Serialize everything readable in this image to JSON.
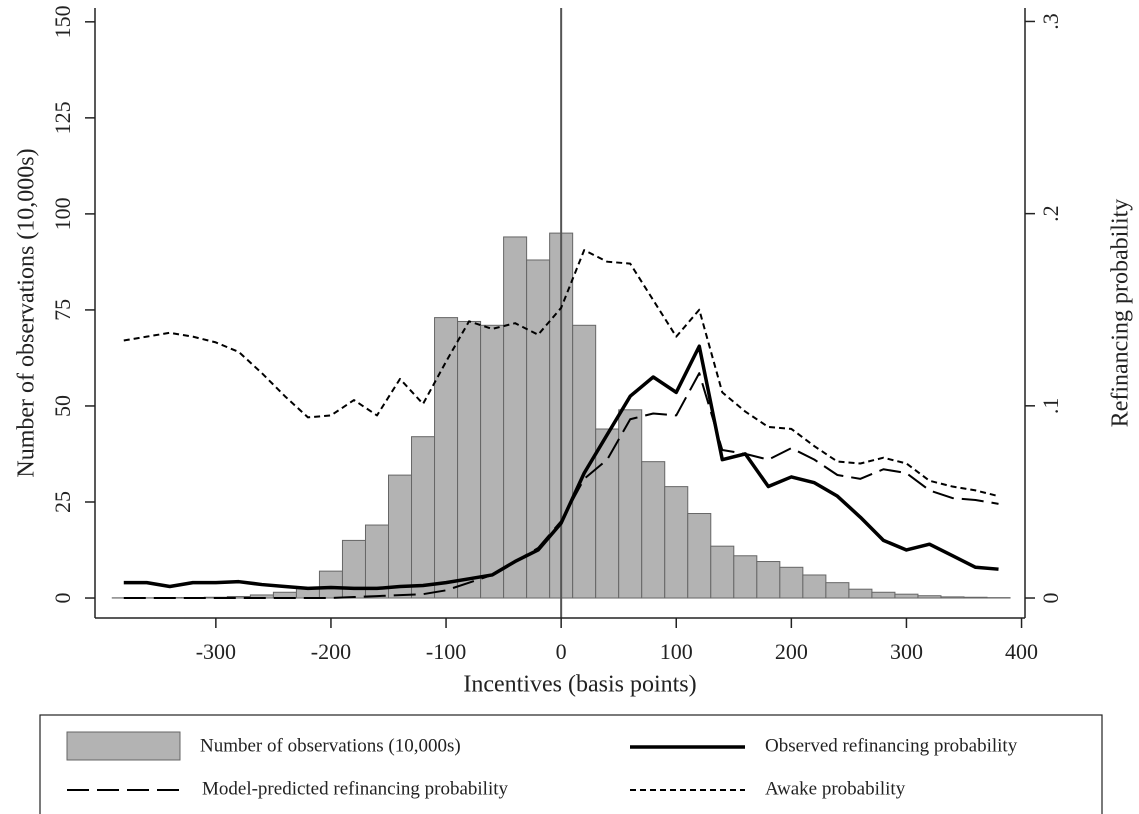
{
  "chart_data": [
    {
      "type": "histogram",
      "name": "Number of observations (10,000s)",
      "color": "#b3b3b3",
      "bins": [
        -390,
        -370,
        -350,
        -330,
        -310,
        -290,
        -270,
        -250,
        -230,
        -210,
        -190,
        -170,
        -150,
        -130,
        -110,
        -90,
        -70,
        -50,
        -30,
        -10,
        10,
        30,
        50,
        70,
        90,
        110,
        130,
        150,
        170,
        190,
        210,
        230,
        250,
        270,
        290,
        310,
        330,
        350,
        370,
        390
      ],
      "values": [
        0.05,
        0.05,
        0.1,
        0.1,
        0.2,
        0.4,
        0.8,
        1.5,
        2.5,
        7,
        15,
        19,
        32,
        42,
        73,
        72,
        71,
        94,
        88,
        95,
        71,
        44,
        49,
        35.5,
        29,
        22,
        13.5,
        11,
        9.5,
        8,
        6,
        4,
        2.3,
        1.5,
        1,
        0.6,
        0.3,
        0.2,
        0.1
      ],
      "xlim": [
        -405,
        403
      ],
      "xticks": [
        -300,
        -200,
        -100,
        0,
        100,
        200,
        300,
        400
      ],
      "xlabel": "Incentives (basis points)",
      "ylim": [
        -5.2,
        153.6
      ],
      "yticks": [
        0,
        25,
        50,
        75,
        100,
        125,
        150
      ],
      "ylabel": "Number of observations (10,000s)",
      "vline": 0
    },
    {
      "type": "line",
      "x": [
        -380,
        -360,
        -340,
        -320,
        -300,
        -280,
        -260,
        -240,
        -220,
        -200,
        -180,
        -160,
        -140,
        -120,
        -100,
        -80,
        -60,
        -40,
        -20,
        0,
        20,
        40,
        60,
        80,
        100,
        120,
        140,
        160,
        180,
        200,
        220,
        240,
        260,
        280,
        300,
        320,
        340,
        360,
        380
      ],
      "y2lim": [
        -0.0104,
        0.307
      ],
      "y2ticks": [
        0,
        {
          "value": 0.1,
          "label": ".1"
        },
        {
          "value": 0.2,
          "label": ".2"
        },
        {
          "value": 0.3,
          "label": ".3"
        }
      ],
      "y2label": "Refinancing probability",
      "series": [
        {
          "name": "Observed refinancing probability",
          "color": "#000000",
          "style": "solid",
          "axis": "y2",
          "values": [
            0.008,
            0.008,
            0.006,
            0.008,
            0.008,
            0.0085,
            0.007,
            0.006,
            0.005,
            0.0055,
            0.005,
            0.005,
            0.006,
            0.0065,
            0.008,
            0.01,
            0.012,
            0.019,
            0.025,
            0.039,
            0.065,
            0.085,
            0.105,
            0.115,
            0.107,
            0.131,
            0.072,
            0.075,
            0.058,
            0.063,
            0.06,
            0.053,
            0.042,
            0.03,
            0.025,
            0.028,
            0.022,
            0.016,
            0.015
          ]
        },
        {
          "name": "Model-predicted refinancing probability",
          "color": "#000000",
          "style": "dashed",
          "axis": "y2",
          "values": [
            0,
            0,
            0,
            0,
            0,
            0,
            0,
            0,
            0,
            0,
            0.0005,
            0.001,
            0.0015,
            0.002,
            0.004,
            0.008,
            0.012,
            0.019,
            0.026,
            0.04,
            0.062,
            0.072,
            0.093,
            0.096,
            0.095,
            0.117,
            0.077,
            0.075,
            0.072,
            0.078,
            0.072,
            0.064,
            0.062,
            0.067,
            0.065,
            0.056,
            0.052,
            0.051,
            0.049
          ]
        },
        {
          "name": "Awake probability",
          "color": "#000000",
          "style": "dotted",
          "axis": "y2",
          "values": [
            0.134,
            0.136,
            0.138,
            0.136,
            0.133,
            0.128,
            0.117,
            0.105,
            0.094,
            0.095,
            0.103,
            0.095,
            0.114,
            0.101,
            0.123,
            0.144,
            0.14,
            0.143,
            0.137,
            0.151,
            0.181,
            0.175,
            0.174,
            0.155,
            0.136,
            0.15,
            0.107,
            0.097,
            0.089,
            0.088,
            0.079,
            0.071,
            0.07,
            0.073,
            0.07,
            0.061,
            0.058,
            0.056,
            0.053
          ]
        }
      ]
    }
  ]
}
